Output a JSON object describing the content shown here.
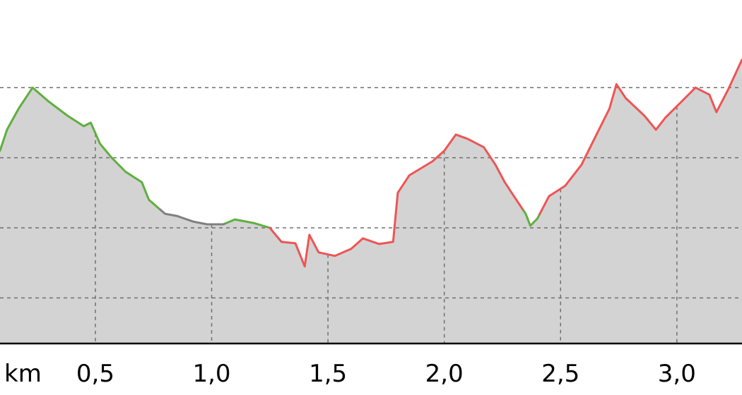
{
  "chart_data": {
    "type": "area",
    "x_unit_label": "km",
    "x_ticks": [
      0.5,
      1.0,
      1.5,
      2.0,
      2.5,
      3.0
    ],
    "x_tick_labels": [
      "0,5",
      "1,0",
      "1,5",
      "2,0",
      "2,5",
      "3,0"
    ],
    "xlim": [
      0.09,
      3.28
    ],
    "ylim": [
      0,
      4.9
    ],
    "y_gridlines": [
      0.65,
      1.65,
      2.65,
      3.65
    ],
    "grid": true,
    "area_color": "#d3d3d3",
    "segment_colors": {
      "flat": "#808080",
      "moderate": "#5faf3f",
      "steep": "#ee5555"
    },
    "profile": [
      [
        0.09,
        2.75
      ],
      [
        0.12,
        3.05
      ],
      [
        0.17,
        3.35
      ],
      [
        0.23,
        3.65
      ],
      [
        0.3,
        3.45
      ],
      [
        0.38,
        3.25
      ],
      [
        0.45,
        3.1
      ],
      [
        0.48,
        3.15
      ],
      [
        0.52,
        2.85
      ],
      [
        0.57,
        2.65
      ],
      [
        0.63,
        2.45
      ],
      [
        0.7,
        2.3
      ],
      [
        0.73,
        2.05
      ],
      [
        0.8,
        1.85
      ],
      [
        0.85,
        1.82
      ],
      [
        0.92,
        1.74
      ],
      [
        0.98,
        1.7
      ],
      [
        1.05,
        1.7
      ],
      [
        1.1,
        1.77
      ],
      [
        1.18,
        1.72
      ],
      [
        1.25,
        1.65
      ],
      [
        1.3,
        1.45
      ],
      [
        1.36,
        1.43
      ],
      [
        1.4,
        1.1
      ],
      [
        1.42,
        1.55
      ],
      [
        1.46,
        1.3
      ],
      [
        1.53,
        1.25
      ],
      [
        1.6,
        1.35
      ],
      [
        1.65,
        1.5
      ],
      [
        1.72,
        1.42
      ],
      [
        1.78,
        1.45
      ],
      [
        1.8,
        2.15
      ],
      [
        1.85,
        2.4
      ],
      [
        1.95,
        2.6
      ],
      [
        2.0,
        2.75
      ],
      [
        2.05,
        2.98
      ],
      [
        2.1,
        2.92
      ],
      [
        2.17,
        2.8
      ],
      [
        2.22,
        2.55
      ],
      [
        2.26,
        2.3
      ],
      [
        2.31,
        2.05
      ],
      [
        2.35,
        1.85
      ],
      [
        2.37,
        1.68
      ],
      [
        2.4,
        1.78
      ],
      [
        2.45,
        2.1
      ],
      [
        2.52,
        2.25
      ],
      [
        2.59,
        2.55
      ],
      [
        2.65,
        2.95
      ],
      [
        2.71,
        3.35
      ],
      [
        2.74,
        3.7
      ],
      [
        2.78,
        3.5
      ],
      [
        2.86,
        3.25
      ],
      [
        2.91,
        3.05
      ],
      [
        2.95,
        3.22
      ],
      [
        3.02,
        3.45
      ],
      [
        3.08,
        3.65
      ],
      [
        3.14,
        3.55
      ],
      [
        3.17,
        3.3
      ],
      [
        3.22,
        3.62
      ],
      [
        3.28,
        4.05
      ]
    ],
    "segments": [
      {
        "from": 0.09,
        "to": 0.78,
        "grade": "moderate"
      },
      {
        "from": 0.78,
        "to": 1.06,
        "grade": "flat"
      },
      {
        "from": 1.06,
        "to": 1.25,
        "grade": "moderate"
      },
      {
        "from": 1.25,
        "to": 2.34,
        "grade": "steep"
      },
      {
        "from": 2.34,
        "to": 2.41,
        "grade": "moderate"
      },
      {
        "from": 2.41,
        "to": 3.28,
        "grade": "steep"
      }
    ]
  }
}
